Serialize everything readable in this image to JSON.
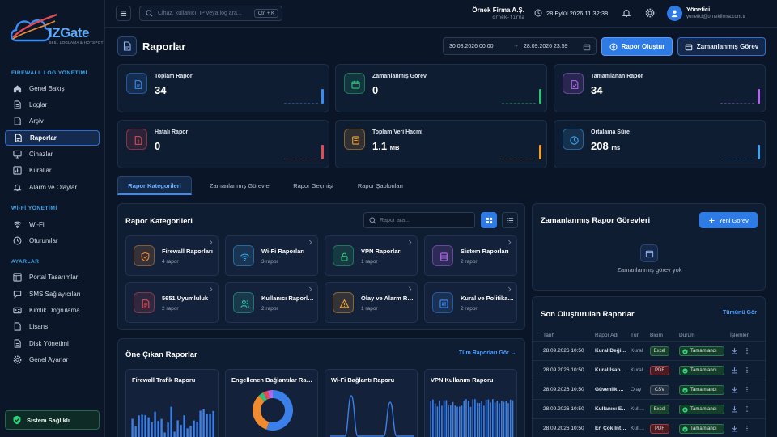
{
  "brand": {
    "name": "IZGate",
    "tagline": "5651 LOGLAMA & HOTSPOT"
  },
  "sidebar": {
    "sections": [
      {
        "title": "FIREWALL LOG YÖNETİMİ",
        "items": [
          {
            "label": "Genel Bakış",
            "icon": "home-icon"
          },
          {
            "label": "Loglar",
            "icon": "document-icon"
          },
          {
            "label": "Arşiv",
            "icon": "archive-icon"
          },
          {
            "label": "Raporlar",
            "icon": "report-icon",
            "active": true
          },
          {
            "label": "Cihazlar",
            "icon": "monitor-icon"
          },
          {
            "label": "Kurallar",
            "icon": "bar-chart-icon"
          },
          {
            "label": "Alarm ve Olaylar",
            "icon": "bell-icon"
          }
        ]
      },
      {
        "title": "Wİ-Fİ YÖNETİMİ",
        "items": [
          {
            "label": "Wi-Fi",
            "icon": "wifi-icon"
          },
          {
            "label": "Oturumlar",
            "icon": "clock-icon"
          }
        ]
      },
      {
        "title": "AYARLAR",
        "items": [
          {
            "label": "Portal Tasarımları",
            "icon": "layout-icon"
          },
          {
            "label": "SMS Sağlayıcıları",
            "icon": "chat-icon"
          },
          {
            "label": "Kimlik Doğrulama",
            "icon": "id-card-icon"
          },
          {
            "label": "Lisans",
            "icon": "key-icon"
          },
          {
            "label": "Disk Yönetimi",
            "icon": "disk-icon"
          },
          {
            "label": "Genel Ayarlar",
            "icon": "gear-icon"
          }
        ]
      }
    ],
    "health_label": "Sistem Sağlıklı"
  },
  "topbar": {
    "search_placeholder": "Cihaz, kullanıcı, IP veya log ara...",
    "shortcut": "Ctrl + K",
    "company_name": "Örnek Firma A.Ş.",
    "company_slug": "ornek-firma",
    "datetime": "28 Eylül 2026 11:32:38",
    "user_name": "Yönetici",
    "user_email": "yonetici@ornekfirma.com.tr"
  },
  "page": {
    "title": "Raporlar",
    "date_from": "30.08.2026 00:00",
    "date_to": "28.09.2026 23:59",
    "create_label": "Rapor Oluştur",
    "scheduled_label": "Zamanlanmış Görev"
  },
  "stats": [
    {
      "label": "Toplam Rapor",
      "value": "34",
      "unit": "",
      "color": "#3b8cf0",
      "icon": "report-icon"
    },
    {
      "label": "Zamanlanmış Görev",
      "value": "0",
      "unit": "",
      "color": "#2fc17a",
      "icon": "calendar-icon"
    },
    {
      "label": "Tamamlanan Rapor",
      "value": "34",
      "unit": "",
      "color": "#b566f0",
      "icon": "check-document-icon"
    },
    {
      "label": "Hatalı Rapor",
      "value": "0",
      "unit": "",
      "color": "#e04b55",
      "icon": "error-document-icon"
    },
    {
      "label": "Toplam Veri Hacmi",
      "value": "1,1",
      "unit": "MB",
      "color": "#f0a030",
      "icon": "database-icon"
    },
    {
      "label": "Ortalama Süre",
      "value": "208",
      "unit": "ms",
      "color": "#3ba6ee",
      "icon": "clock-icon"
    }
  ],
  "tabs": [
    "Rapor Kategorileri",
    "Zamanlanmış Görevler",
    "Rapor Geçmişi",
    "Rapor Şablonları"
  ],
  "categories": {
    "title": "Rapor Kategorileri",
    "search_placeholder": "Rapor ara...",
    "items": [
      {
        "name": "Firewall Raporları",
        "count": "4 rapor",
        "color": "#f08a30",
        "icon": "shield-icon"
      },
      {
        "name": "Wi-Fi Raporları",
        "count": "3 rapor",
        "color": "#3ba6ee",
        "icon": "wifi-icon"
      },
      {
        "name": "VPN Raporları",
        "count": "1 rapor",
        "color": "#2fc17a",
        "icon": "lock-icon"
      },
      {
        "name": "Sistem Raporları",
        "count": "2 rapor",
        "color": "#b566f0",
        "icon": "server-icon"
      },
      {
        "name": "5651 Uyumluluk",
        "count": "2 rapor",
        "color": "#e04b55",
        "icon": "document-icon"
      },
      {
        "name": "Kullanıcı Raporları",
        "count": "2 rapor",
        "color": "#2fc1a8",
        "icon": "users-icon"
      },
      {
        "name": "Olay ve Alarm Raporları",
        "count": "1 rapor",
        "color": "#f0a030",
        "icon": "warning-icon"
      },
      {
        "name": "Kural ve Politika Raporları",
        "count": "2 rapor",
        "color": "#3b8cf0",
        "icon": "sliders-icon"
      }
    ]
  },
  "featured": {
    "title": "Öne Çıkan Raporlar",
    "all_label": "Tüm Raporları Gör →",
    "items": [
      {
        "name": "Firewall Trafik Raporu",
        "chart": "bars"
      },
      {
        "name": "Engellenen Bağlantılar Raporu",
        "chart": "donut"
      },
      {
        "name": "Wi-Fi Bağlantı Raporu",
        "chart": "line"
      },
      {
        "name": "VPN Kullanım Raporu",
        "chart": "dense-bars"
      }
    ]
  },
  "scheduled": {
    "title": "Zamanlanmış Rapor Görevleri",
    "new_label": "Yeni Görev",
    "empty": "Zamanlanmış görev yok"
  },
  "recent": {
    "title": "Son Oluşturulan Raporlar",
    "all_label": "Tümünü Gör",
    "columns": [
      "Tarih",
      "Rapor Adı",
      "Tür",
      "Biçim",
      "Durum",
      "İşlemler"
    ],
    "rows": [
      {
        "date": "28.09.2026 10:50",
        "name": "Kural Değişiklikleri",
        "type": "Kural",
        "format": "Excel",
        "status": "Tamamlandı"
      },
      {
        "date": "28.09.2026 10:50",
        "name": "Kural İsabetleri",
        "type": "Kural",
        "format": "PDF",
        "status": "Tamamlandı"
      },
      {
        "date": "28.09.2026 10:50",
        "name": "Güvenlik Olayları",
        "type": "Olay",
        "format": "CSV",
        "status": "Tamamlandı"
      },
      {
        "date": "28.09.2026 10:50",
        "name": "Kullanıcı Etkinliği",
        "type": "Kullanıcı",
        "format": "Excel",
        "status": "Tamamlandı"
      },
      {
        "date": "28.09.2026 10:50",
        "name": "En Çok İnternet",
        "type": "Kullanıcı",
        "format": "PDF",
        "status": "Tamamlandı"
      }
    ]
  }
}
